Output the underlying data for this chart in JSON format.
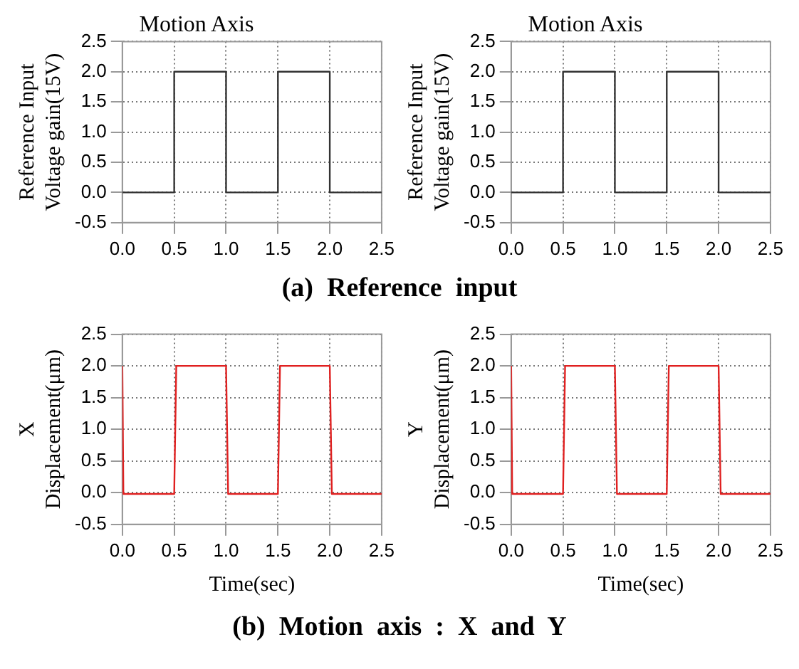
{
  "chart_data": [
    {
      "type": "line",
      "title": "Motion Axis",
      "ylabel": "Reference Input\nVoltage gain(15V)",
      "annotations": [
        "(a)  Reference  input"
      ],
      "x": [
        0,
        0.5,
        0.5,
        1.0,
        1.0,
        1.5,
        1.5,
        2.0,
        2.0,
        2.5
      ],
      "series": [
        {
          "color": "#333333",
          "values": [
            0,
            0,
            2,
            2,
            0,
            0,
            2,
            2,
            0,
            0
          ]
        }
      ],
      "xlim": [
        0,
        2.5
      ],
      "xticks": [
        {
          "value": 0,
          "label": "0.0"
        },
        0.5,
        {
          "value": 1,
          "label": "1.0"
        },
        1.5,
        {
          "value": 2,
          "label": "2.0"
        },
        2.5
      ],
      "ylim": [
        -0.5,
        2.5
      ],
      "yticks": [
        -0.5,
        {
          "value": 0,
          "label": "0.0"
        },
        0.5,
        {
          "value": 1,
          "label": "1.0"
        },
        1.5,
        {
          "value": 2,
          "label": "2.0"
        },
        2.5
      ],
      "grid": true
    },
    {
      "type": "line",
      "title": "Motion Axis",
      "ylabel": "Reference Input\nVoltage gain(15V)",
      "x": [
        0,
        0.5,
        0.5,
        1.0,
        1.0,
        1.5,
        1.5,
        2.0,
        2.0,
        2.5
      ],
      "series": [
        {
          "color": "#333333",
          "values": [
            0,
            0,
            2,
            2,
            0,
            0,
            2,
            2,
            0,
            0
          ]
        }
      ],
      "xlim": [
        0,
        2.5
      ],
      "xticks": [
        {
          "value": 0,
          "label": "0.0"
        },
        0.5,
        {
          "value": 1,
          "label": "1.0"
        },
        1.5,
        {
          "value": 2,
          "label": "2.0"
        },
        2.5
      ],
      "ylim": [
        -0.5,
        2.5
      ],
      "yticks": [
        -0.5,
        {
          "value": 0,
          "label": "0.0"
        },
        0.5,
        {
          "value": 1,
          "label": "1.0"
        },
        1.5,
        {
          "value": 2,
          "label": "2.0"
        },
        2.5
      ],
      "grid": true
    },
    {
      "type": "line",
      "xlabel": "Time(sec)",
      "ylabel": "X\nDisplacement(μm)",
      "annotations": [
        "(b)  Motion  axis  :  X  and  Y"
      ],
      "x": [
        0,
        0.01,
        0.5,
        0.52,
        1.0,
        1.02,
        1.5,
        1.52,
        2.0,
        2.02,
        2.5
      ],
      "series": [
        {
          "color": "#e02020",
          "values": [
            2,
            -0.02,
            -0.02,
            2,
            2,
            -0.02,
            -0.02,
            2,
            2,
            -0.02,
            -0.02
          ]
        }
      ],
      "xlim": [
        0,
        2.5
      ],
      "xticks": [
        {
          "value": 0,
          "label": "0.0"
        },
        0.5,
        {
          "value": 1,
          "label": "1.0"
        },
        1.5,
        {
          "value": 2,
          "label": "2.0"
        },
        2.5
      ],
      "ylim": [
        -0.5,
        2.5
      ],
      "yticks": [
        -0.5,
        {
          "value": 0,
          "label": "0.0"
        },
        0.5,
        {
          "value": 1,
          "label": "1.0"
        },
        1.5,
        {
          "value": 2,
          "label": "2.0"
        },
        2.5
      ],
      "grid": true
    },
    {
      "type": "line",
      "xlabel": "Time(sec)",
      "ylabel": "Y\nDisplacement(μm)",
      "x": [
        0,
        0.01,
        0.5,
        0.52,
        1.0,
        1.02,
        1.5,
        1.52,
        2.0,
        2.02,
        2.5
      ],
      "series": [
        {
          "color": "#e02020",
          "values": [
            2,
            -0.02,
            -0.02,
            2,
            2,
            -0.02,
            -0.02,
            2,
            2,
            -0.02,
            -0.02
          ]
        }
      ],
      "xlim": [
        0,
        2.5
      ],
      "xticks": [
        {
          "value": 0,
          "label": "0.0"
        },
        0.5,
        {
          "value": 1,
          "label": "1.0"
        },
        1.5,
        {
          "value": 2,
          "label": "2.0"
        },
        2.5
      ],
      "ylim": [
        -0.5,
        2.5
      ],
      "yticks": [
        -0.5,
        {
          "value": 0,
          "label": "0.0"
        },
        0.5,
        {
          "value": 1,
          "label": "1.0"
        },
        1.5,
        {
          "value": 2,
          "label": "2.0"
        },
        2.5
      ],
      "grid": true
    }
  ]
}
